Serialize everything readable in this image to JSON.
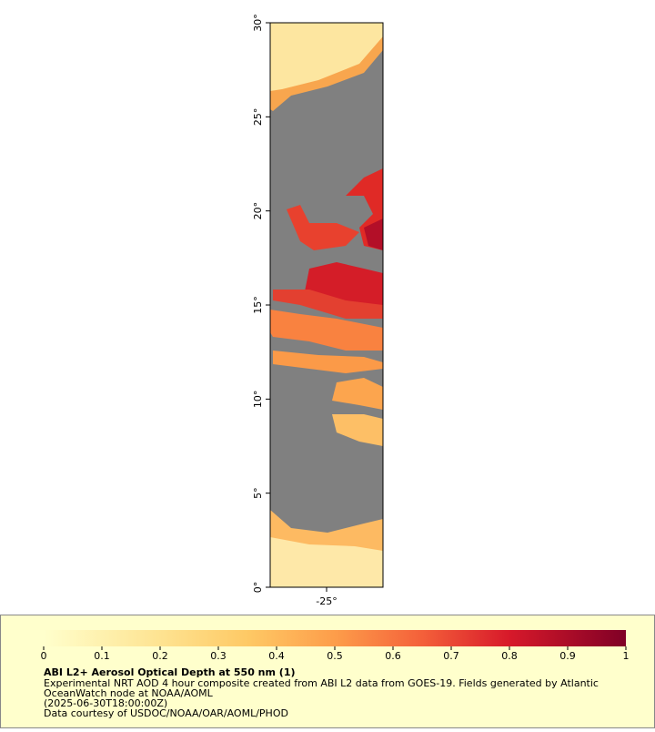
{
  "map": {
    "xlim": [
      -28,
      -22
    ],
    "ylim": [
      0,
      30
    ],
    "xticks": [
      {
        "value": -25,
        "label": "-25°"
      }
    ],
    "yticks": [
      {
        "value": 0,
        "label": "0°"
      },
      {
        "value": 5,
        "label": "5°"
      },
      {
        "value": 10,
        "label": "10°"
      },
      {
        "value": 15,
        "label": "15°"
      },
      {
        "value": 20,
        "label": "20°"
      },
      {
        "value": 25,
        "label": "25°"
      },
      {
        "value": 30,
        "label": "30°"
      }
    ]
  },
  "colorbar": {
    "lim": [
      0,
      1
    ],
    "ticks": [
      0,
      0.1,
      0.2,
      0.3,
      0.4,
      0.5,
      0.6,
      0.7,
      0.8,
      0.9,
      1
    ]
  },
  "legend": {
    "title": "ABI L2+ Aerosol Optical Depth at 550 nm (1)",
    "lines": [
      "Experimental NRT AOD 4 hour composite created from ABI L2 data from GOES-19. Fields generated by Atlantic",
      "OceanWatch node at NOAA/AOML",
      "(2025-06-30T18:00:00Z)",
      "Data courtesy of USDOC/NOAA/OAR/AOML/PHOD"
    ]
  }
}
